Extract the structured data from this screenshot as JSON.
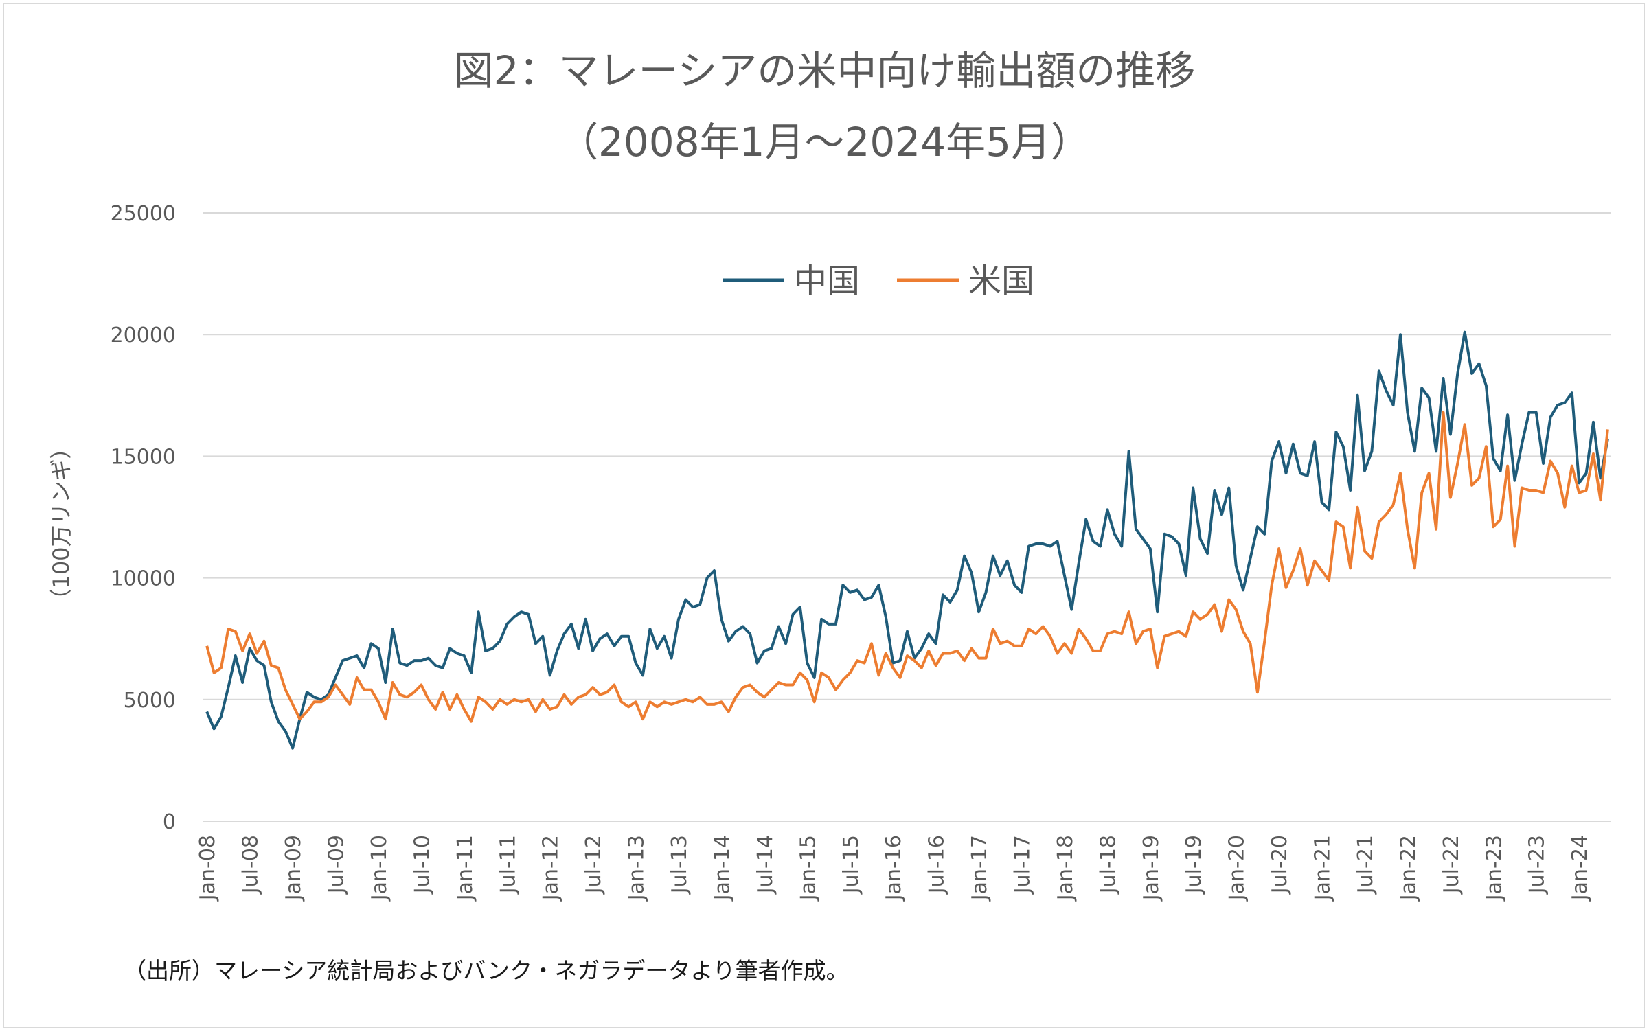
{
  "title": "図2：マレーシアの米中向け輸出額の推移",
  "subtitle": "（2008年1月～2024年5月）",
  "source_note": "（出所）マレーシア統計局およびバンク・ネガラデータより筆者作成。",
  "chart_data": {
    "type": "line",
    "title": "図2：マレーシアの米中向け輸出額の推移",
    "subtitle": "（2008年1月～2024年5月）",
    "ylabel": "（100万リンギ）",
    "xlabel": "",
    "ylim": [
      0,
      25000
    ],
    "yticks": [
      "0",
      "5000",
      "10000",
      "15000",
      "20000",
      "25000"
    ],
    "x_start": "2008-01",
    "x_end": "2024-05",
    "x_tick_labels": [
      "Jan-08",
      "Jul-08",
      "Jan-09",
      "Jul-09",
      "Jan-10",
      "Jul-10",
      "Jan-11",
      "Jul-11",
      "Jan-12",
      "Jul-12",
      "Jan-13",
      "Jul-13",
      "Jan-14",
      "Jul-14",
      "Jan-15",
      "Jul-15",
      "Jan-16",
      "Jul-16",
      "Jan-17",
      "Jul-17",
      "Jan-18",
      "Jul-18",
      "Jan-19",
      "Jul-19",
      "Jan-20",
      "Jul-20",
      "Jan-21",
      "Jul-21",
      "Jan-22",
      "Jul-22",
      "Jan-23",
      "Jul-23",
      "Jan-24"
    ],
    "grid": true,
    "legend_position": "top-center",
    "series": [
      {
        "name": "中国",
        "color": "#1f5c7a",
        "values": [
          4500,
          3800,
          4300,
          5500,
          6800,
          5700,
          7100,
          6600,
          6400,
          4900,
          4100,
          3700,
          3000,
          4200,
          5300,
          5100,
          5000,
          5200,
          5900,
          6600,
          6700,
          6800,
          6300,
          7300,
          7100,
          5700,
          7900,
          6500,
          6400,
          6600,
          6600,
          6700,
          6400,
          6300,
          7100,
          6900,
          6800,
          6100,
          8600,
          7000,
          7100,
          7400,
          8100,
          8400,
          8600,
          8500,
          7300,
          7600,
          6000,
          7000,
          7700,
          8100,
          7100,
          8300,
          7000,
          7500,
          7700,
          7200,
          7600,
          7600,
          6500,
          6000,
          7900,
          7100,
          7600,
          6700,
          8300,
          9100,
          8800,
          8900,
          10000,
          10300,
          8300,
          7400,
          7800,
          8000,
          7700,
          6500,
          7000,
          7100,
          8000,
          7300,
          8500,
          8800,
          6500,
          5900,
          8300,
          8100,
          8100,
          9700,
          9400,
          9500,
          9100,
          9200,
          9700,
          8400,
          6500,
          6600,
          7800,
          6700,
          7100,
          7700,
          7300,
          9300,
          9000,
          9500,
          10900,
          10200,
          8600,
          9400,
          10900,
          10100,
          10700,
          9700,
          9400,
          11300,
          11400,
          11400,
          11300,
          11500,
          10100,
          8700,
          10600,
          12400,
          11500,
          11300,
          12800,
          11800,
          11300,
          15200,
          12000,
          11600,
          11200,
          8600,
          11800,
          11700,
          11400,
          10100,
          13700,
          11600,
          11000,
          13600,
          12600,
          13700,
          10500,
          9500,
          10800,
          12100,
          11800,
          14800,
          15600,
          14300,
          15500,
          14300,
          14200,
          15600,
          13100,
          12800,
          16000,
          15400,
          13600,
          17500,
          14400,
          15200,
          18500,
          17700,
          17100,
          20000,
          16800,
          15200,
          17800,
          17400,
          15200,
          18200,
          15900,
          18400,
          20100,
          18400,
          18800,
          17900,
          14900,
          14400,
          16700,
          14000,
          15500,
          16800,
          16800,
          14700,
          16600,
          17100,
          17200,
          17600,
          13900,
          14300,
          16400,
          14100,
          15700
        ]
      },
      {
        "name": "米国",
        "color": "#ed7d31",
        "values": [
          7200,
          6100,
          6300,
          7900,
          7800,
          7000,
          7700,
          6900,
          7400,
          6400,
          6300,
          5400,
          4800,
          4200,
          4500,
          4900,
          4900,
          5100,
          5600,
          5200,
          4800,
          5900,
          5400,
          5400,
          4900,
          4200,
          5700,
          5200,
          5100,
          5300,
          5600,
          5000,
          4600,
          5300,
          4600,
          5200,
          4600,
          4100,
          5100,
          4900,
          4600,
          5000,
          4800,
          5000,
          4900,
          5000,
          4500,
          5000,
          4600,
          4700,
          5200,
          4800,
          5100,
          5200,
          5500,
          5200,
          5300,
          5600,
          4900,
          4700,
          4900,
          4200,
          4900,
          4700,
          4900,
          4800,
          4900,
          5000,
          4900,
          5100,
          4800,
          4800,
          4900,
          4500,
          5100,
          5500,
          5600,
          5300,
          5100,
          5400,
          5700,
          5600,
          5600,
          6100,
          5800,
          4900,
          6100,
          5900,
          5400,
          5800,
          6100,
          6600,
          6500,
          7300,
          6000,
          6900,
          6300,
          5900,
          6800,
          6600,
          6300,
          7000,
          6400,
          6900,
          6900,
          7000,
          6600,
          7100,
          6700,
          6700,
          7900,
          7300,
          7400,
          7200,
          7200,
          7900,
          7700,
          8000,
          7600,
          6900,
          7300,
          6900,
          7900,
          7500,
          7000,
          7000,
          7700,
          7800,
          7700,
          8600,
          7300,
          7800,
          7900,
          6300,
          7600,
          7700,
          7800,
          7600,
          8600,
          8300,
          8500,
          8900,
          7800,
          9100,
          8700,
          7800,
          7300,
          5300,
          7400,
          9700,
          11200,
          9600,
          10300,
          11200,
          9700,
          10700,
          10300,
          9900,
          12300,
          12100,
          10400,
          12900,
          11100,
          10800,
          12300,
          12600,
          13000,
          14300,
          12000,
          10400,
          13500,
          14300,
          12000,
          16800,
          13300,
          14700,
          16300,
          13800,
          14100,
          15400,
          12100,
          12400,
          14600,
          11300,
          13700,
          13600,
          13600,
          13500,
          14800,
          14300,
          12900,
          14600,
          13500,
          13600,
          15100,
          13200,
          16100
        ]
      }
    ]
  }
}
